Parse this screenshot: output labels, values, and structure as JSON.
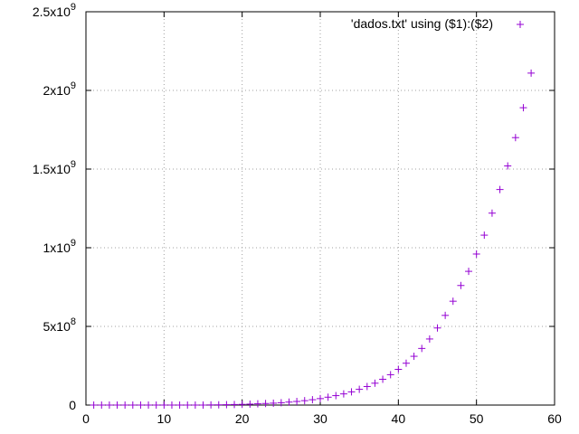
{
  "chart_data": {
    "type": "scatter",
    "title": "",
    "xlabel": "",
    "ylabel": "",
    "xlim": [
      0,
      60
    ],
    "ylim": [
      0,
      2500000000
    ],
    "grid": true,
    "legend_position": "top-right",
    "x_ticks": [
      {
        "value": 0,
        "label": "0"
      },
      {
        "value": 10,
        "label": "10"
      },
      {
        "value": 20,
        "label": "20"
      },
      {
        "value": 30,
        "label": "30"
      },
      {
        "value": 40,
        "label": "40"
      },
      {
        "value": 50,
        "label": "50"
      },
      {
        "value": 60,
        "label": "60"
      }
    ],
    "y_ticks": [
      {
        "value": 0,
        "label": "0",
        "mantissa": "0",
        "exponent": ""
      },
      {
        "value": 500000000,
        "label": "5x10^8",
        "mantissa": "5x10",
        "exponent": "8"
      },
      {
        "value": 1000000000,
        "label": "1x10^9",
        "mantissa": "1x10",
        "exponent": "9"
      },
      {
        "value": 1500000000,
        "label": "1.5x10^9",
        "mantissa": "1.5x10",
        "exponent": "9"
      },
      {
        "value": 2000000000,
        "label": "2x10^9",
        "mantissa": "2x10",
        "exponent": "9"
      },
      {
        "value": 2500000000,
        "label": "2.5x10^9",
        "mantissa": "2.5x10",
        "exponent": "9"
      }
    ],
    "series": [
      {
        "name": "'dados.txt' using ($1):($2)",
        "color": "#9400d3",
        "marker": "plus",
        "x": [
          1,
          2,
          3,
          4,
          5,
          6,
          7,
          8,
          9,
          10,
          11,
          12,
          13,
          14,
          15,
          16,
          17,
          18,
          19,
          20,
          21,
          22,
          23,
          24,
          25,
          26,
          27,
          28,
          29,
          30,
          31,
          32,
          33,
          34,
          35,
          36,
          37,
          38,
          39,
          40,
          41,
          42,
          43,
          44,
          45,
          46,
          47,
          48,
          49,
          50,
          51,
          52,
          53,
          54,
          55,
          56,
          57
        ],
        "y": [
          0,
          0,
          0,
          0,
          0,
          0,
          0,
          0,
          0,
          0,
          0,
          0,
          0,
          0,
          0,
          1000000,
          1500000,
          2500000,
          3500000,
          4500000,
          6000000,
          8000000,
          10000000,
          12000000,
          15000000,
          19000000,
          23000000,
          28000000,
          34000000,
          41000000,
          50000000,
          60000000,
          71000000,
          84000000,
          100000000,
          118000000,
          139000000,
          164000000,
          193000000,
          227000000,
          266000000,
          310000000,
          360000000,
          420000000,
          490000000,
          570000000,
          660000000,
          760000000,
          850000000,
          960000000,
          1080000000,
          1220000000,
          1370000000,
          1520000000,
          1700000000,
          1890000000,
          2110000000
        ]
      }
    ]
  }
}
